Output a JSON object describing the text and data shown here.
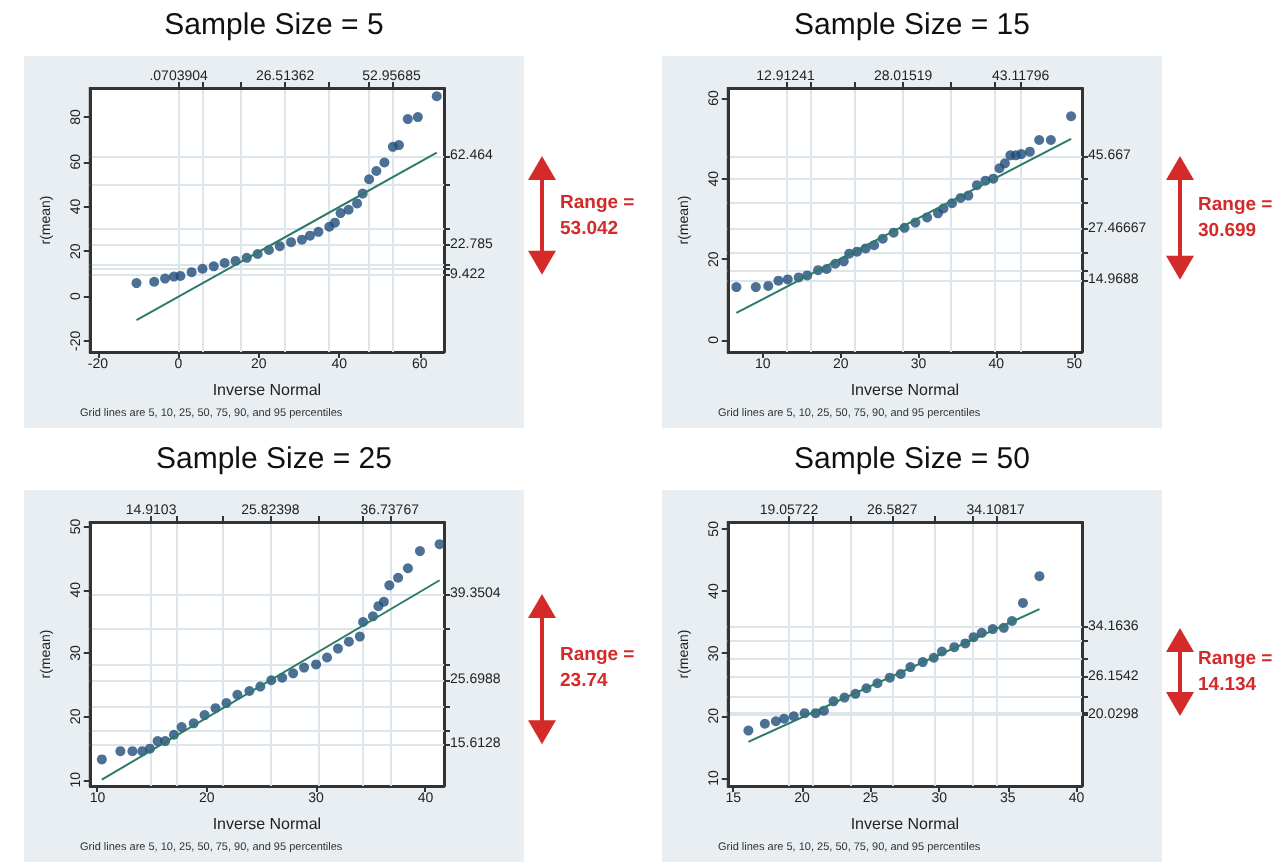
{
  "chart_data": [
    {
      "type": "scatter",
      "title": "Sample Size = 5",
      "xlabel": "Inverse Normal",
      "ylabel": "r(mean)",
      "grid": true,
      "xlim": [
        -22,
        66
      ],
      "xticks": [
        -20,
        0,
        20,
        40,
        60
      ],
      "ylim": [
        -25,
        93
      ],
      "yticks": [
        -20,
        0,
        20,
        40,
        60,
        80
      ],
      "x2lim": [
        -22,
        66
      ],
      "x2ticks": [
        {
          "value": 0.0703904,
          "label": ".0703904"
        },
        {
          "value": 5.92,
          "label": null
        },
        {
          "value": 15.67,
          "label": null
        },
        {
          "value": 26.51362,
          "label": "26.51362"
        },
        {
          "value": 37.35,
          "label": null
        },
        {
          "value": 47.11,
          "label": null
        },
        {
          "value": 52.95685,
          "label": "52.95685"
        }
      ],
      "y2lim": [
        -25,
        93
      ],
      "y2ticks": [
        {
          "value": 9.422,
          "label": "9.422"
        },
        {
          "value": 11.9,
          "label": null
        },
        {
          "value": 14.5,
          "label": null
        },
        {
          "value": 22.785,
          "label": "22.785"
        },
        {
          "value": 30.4,
          "label": null
        },
        {
          "value": 49.6,
          "label": null
        },
        {
          "value": 62.464,
          "label": "62.464"
        }
      ],
      "series": [
        {
          "marker": "circle",
          "color": "#1f4e79",
          "x": [
            -10.4,
            -6.0,
            -3.3,
            -1.1,
            0.5,
            3.3,
            6.0,
            8.8,
            11.5,
            14.2,
            17.0,
            19.7,
            22.5,
            25.2,
            28.0,
            30.7,
            32.7,
            34.8,
            37.5,
            38.9,
            40.3,
            42.3,
            44.4,
            45.8,
            47.4,
            49.2,
            51.2,
            53.3,
            54.8,
            57.0,
            59.5,
            64.2
          ],
          "values": [
            5.8,
            6.4,
            7.8,
            8.7,
            9.0,
            10.7,
            12.2,
            13.3,
            14.8,
            15.7,
            17.1,
            18.8,
            20.6,
            22.3,
            24.1,
            25.2,
            27.0,
            28.7,
            31.0,
            32.8,
            37.1,
            38.6,
            41.4,
            45.8,
            52.2,
            55.9,
            59.7,
            66.7,
            67.5,
            79.1,
            80.0,
            89.3
          ]
        },
        {
          "type": "line",
          "color": "#2a7a6a",
          "x": [
            -10.4,
            64.2
          ],
          "values": [
            -10.7,
            64.1
          ]
        }
      ],
      "annotations": [
        "Grid lines are 5, 10, 25, 50, 75, 90, and 95 percentiles",
        "Range = 53.042"
      ]
    },
    {
      "type": "scatter",
      "title": "Sample Size = 15",
      "xlabel": "Inverse Normal",
      "ylabel": "r(mean)",
      "grid": true,
      "xlim": [
        5.5,
        51
      ],
      "xticks": [
        10,
        20,
        30,
        40,
        50
      ],
      "ylim": [
        -3,
        62.5
      ],
      "yticks": [
        0,
        20,
        40,
        60
      ],
      "x2lim": [
        5.5,
        51
      ],
      "x2ticks": [
        {
          "value": 12.91241,
          "label": "12.91241"
        },
        {
          "value": 16.25,
          "label": null
        },
        {
          "value": 21.82,
          "label": null
        },
        {
          "value": 28.01519,
          "label": "28.01519"
        },
        {
          "value": 34.21,
          "label": null
        },
        {
          "value": 39.78,
          "label": null
        },
        {
          "value": 43.11796,
          "label": "43.11796"
        }
      ],
      "y2lim": [
        -3,
        62.5
      ],
      "y2ticks": [
        {
          "value": 14.9688,
          "label": "14.9688"
        },
        {
          "value": 17.1,
          "label": null
        },
        {
          "value": 21.9,
          "label": null
        },
        {
          "value": 27.46667,
          "label": "27.46667"
        },
        {
          "value": 33.9,
          "label": null
        },
        {
          "value": 40.0,
          "label": null
        },
        {
          "value": 45.667,
          "label": "45.667"
        }
      ],
      "series": [
        {
          "marker": "circle",
          "color": "#1f4e79",
          "x": [
            6.6,
            9.1,
            10.7,
            12.0,
            13.2,
            14.6,
            15.7,
            17.1,
            18.2,
            19.3,
            20.4,
            21.1,
            22.1,
            23.2,
            24.3,
            25.4,
            26.8,
            28.2,
            29.6,
            31.1,
            32.5,
            33.2,
            34.3,
            35.4,
            36.4,
            37.5,
            38.6,
            39.6,
            40.4,
            41.1,
            41.8,
            42.5,
            43.2,
            44.3,
            45.5,
            47.0,
            49.6
          ],
          "values": [
            13.1,
            13.1,
            13.4,
            14.7,
            15.0,
            15.5,
            16.0,
            17.3,
            17.6,
            18.9,
            19.5,
            21.4,
            21.9,
            22.7,
            23.5,
            25.1,
            26.6,
            27.8,
            29.1,
            30.4,
            31.4,
            32.6,
            33.9,
            35.2,
            35.8,
            38.4,
            39.5,
            40.0,
            42.6,
            43.8,
            45.8,
            45.8,
            46.1,
            46.7,
            49.6,
            49.6,
            55.5
          ]
        },
        {
          "type": "line",
          "color": "#2a7a6a",
          "x": [
            6.6,
            49.6
          ],
          "values": [
            6.7,
            49.9
          ]
        }
      ],
      "annotations": [
        "Grid lines are 5, 10, 25, 50, 75, 90, and 95 percentiles",
        "Range = 30.699"
      ]
    },
    {
      "type": "scatter",
      "title": "Sample Size = 25",
      "xlabel": "Inverse Normal",
      "ylabel": "r(mean)",
      "grid": true,
      "xlim": [
        9.3,
        41.7
      ],
      "xticks": [
        10,
        20,
        30,
        40
      ],
      "ylim": [
        9,
        50.7
      ],
      "yticks": [
        10,
        20,
        30,
        40,
        50
      ],
      "x2lim": [
        9.3,
        41.7
      ],
      "x2ticks": [
        {
          "value": 14.9103,
          "label": "14.9103"
        },
        {
          "value": 17.32,
          "label": null
        },
        {
          "value": 21.35,
          "label": null
        },
        {
          "value": 25.82398,
          "label": "25.82398"
        },
        {
          "value": 30.3,
          "label": null
        },
        {
          "value": 34.33,
          "label": null
        },
        {
          "value": 36.73767,
          "label": "36.73767"
        }
      ],
      "y2lim": [
        9,
        50.7
      ],
      "y2ticks": [
        {
          "value": 15.6128,
          "label": "15.6128"
        },
        {
          "value": 17.9,
          "label": null
        },
        {
          "value": 21.6,
          "label": null
        },
        {
          "value": 25.6988,
          "label": "25.6988"
        },
        {
          "value": 28.1,
          "label": null
        },
        {
          "value": 33.9,
          "label": null
        },
        {
          "value": 39.3504,
          "label": "39.3504"
        }
      ],
      "series": [
        {
          "marker": "circle",
          "color": "#1f4e79",
          "x": [
            10.4,
            12.1,
            13.2,
            14.1,
            14.8,
            15.5,
            16.2,
            17.0,
            17.7,
            18.8,
            19.8,
            20.8,
            21.8,
            22.8,
            23.9,
            24.9,
            25.9,
            26.9,
            27.9,
            28.9,
            30.0,
            31.0,
            32.0,
            33.0,
            34.0,
            34.3,
            35.2,
            35.7,
            36.2,
            36.7,
            37.5,
            38.4,
            39.5,
            41.3
          ],
          "values": [
            13.2,
            14.5,
            14.5,
            14.5,
            14.9,
            16.1,
            16.1,
            17.1,
            18.3,
            18.9,
            20.2,
            21.3,
            22.1,
            23.4,
            24.0,
            24.7,
            25.7,
            26.1,
            26.8,
            27.7,
            28.2,
            29.3,
            30.7,
            31.8,
            32.6,
            34.9,
            35.8,
            37.4,
            38.1,
            40.7,
            41.9,
            43.4,
            46.1,
            47.2
          ]
        },
        {
          "type": "line",
          "color": "#2a7a6a",
          "x": [
            10.4,
            41.3
          ],
          "values": [
            10.0,
            41.5
          ]
        }
      ],
      "annotations": [
        "Grid lines are 5, 10, 25, 50, 75, 90, and 95 percentiles",
        "Range = 23.74"
      ]
    },
    {
      "type": "scatter",
      "title": "Sample Size = 50",
      "xlabel": "Inverse Normal",
      "ylabel": "r(mean)",
      "grid": true,
      "xlim": [
        14.6,
        40.4
      ],
      "xticks": [
        15,
        20,
        25,
        30,
        35,
        40
      ],
      "ylim": [
        8.7,
        51.1
      ],
      "yticks": [
        10,
        20,
        30,
        40,
        50
      ],
      "x2lim": [
        14.6,
        40.4
      ],
      "x2ticks": [
        {
          "value": 19.05722,
          "label": "19.05722"
        },
        {
          "value": 20.72,
          "label": null
        },
        {
          "value": 23.5,
          "label": null
        },
        {
          "value": 26.5827,
          "label": "26.5827"
        },
        {
          "value": 29.67,
          "label": null
        },
        {
          "value": 32.45,
          "label": null
        },
        {
          "value": 34.10817,
          "label": "34.10817"
        }
      ],
      "y2lim": [
        8.7,
        51.1
      ],
      "y2ticks": [
        {
          "value": 20.0298,
          "label": "20.0298"
        },
        {
          "value": 20.6,
          "label": null
        },
        {
          "value": 23.1,
          "label": null
        },
        {
          "value": 26.1542,
          "label": "26.1542"
        },
        {
          "value": 29.3,
          "label": null
        },
        {
          "value": 32.2,
          "label": null
        },
        {
          "value": 34.1636,
          "label": "34.1636"
        }
      ],
      "series": [
        {
          "marker": "circle",
          "color": "#1f4e79",
          "x": [
            16.1,
            17.3,
            18.1,
            18.7,
            19.4,
            20.2,
            21.0,
            21.6,
            22.3,
            23.1,
            23.9,
            24.7,
            25.5,
            26.4,
            27.2,
            27.9,
            28.8,
            29.6,
            30.2,
            31.1,
            31.9,
            32.5,
            33.1,
            33.9,
            34.7,
            35.3,
            36.1,
            37.3
          ],
          "values": [
            17.6,
            18.7,
            19.1,
            19.5,
            19.9,
            20.4,
            20.4,
            20.8,
            22.3,
            22.9,
            23.5,
            24.4,
            25.2,
            26.1,
            26.7,
            27.8,
            28.6,
            29.3,
            30.3,
            31.0,
            31.6,
            32.6,
            33.3,
            33.9,
            34.1,
            35.2,
            38.1,
            42.4
          ]
        },
        {
          "type": "line",
          "color": "#2a7a6a",
          "x": [
            16.1,
            37.3
          ],
          "values": [
            15.8,
            37.1
          ]
        }
      ],
      "annotations": [
        "Grid lines are 5, 10, 25, 50, 75, 90, and 95 percentiles",
        "Range = 14.134"
      ]
    }
  ]
}
